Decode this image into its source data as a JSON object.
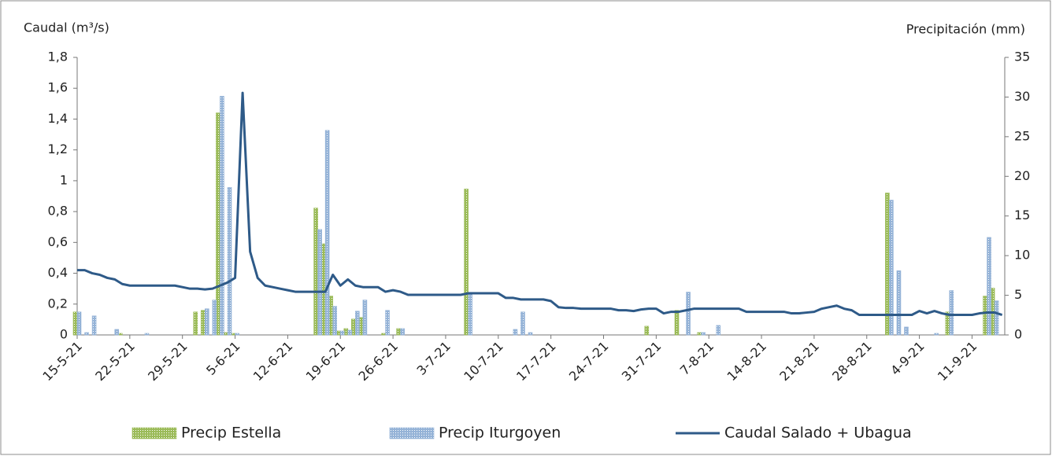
{
  "chart_data": {
    "type": "bar",
    "y_label": "Caudal (m³/s)",
    "y2_label": "Precipitación (mm)",
    "categories": [
      "15-5-21",
      null,
      null,
      null,
      null,
      null,
      null,
      "22-5-21",
      null,
      null,
      null,
      null,
      null,
      null,
      "29-5-21",
      null,
      null,
      null,
      null,
      null,
      null,
      "5-6-21",
      null,
      null,
      null,
      null,
      null,
      null,
      "12-6-21",
      null,
      null,
      null,
      null,
      null,
      null,
      "19-6-21",
      null,
      null,
      null,
      null,
      null,
      null,
      "26-6-21",
      null,
      null,
      null,
      null,
      null,
      null,
      "3-7-21",
      null,
      null,
      null,
      null,
      null,
      null,
      "10-7-21",
      null,
      null,
      null,
      null,
      null,
      null,
      "17-7-21",
      null,
      null,
      null,
      null,
      null,
      null,
      "24-7-21",
      null,
      null,
      null,
      null,
      null,
      null,
      "31-7-21",
      null,
      null,
      null,
      null,
      null,
      null,
      "7-8-21",
      null,
      null,
      null,
      null,
      null,
      null,
      "14-8-21",
      null,
      null,
      null,
      null,
      null,
      null,
      "21-8-21",
      null,
      null,
      null,
      null,
      null,
      null,
      "28-8-21",
      null,
      null,
      null,
      null,
      null,
      null,
      "4-9-21",
      null,
      null,
      null,
      null,
      null,
      null,
      "11-9-21",
      null,
      null,
      null,
      null
    ],
    "series": [
      {
        "name": "Precip Estella",
        "color": "#9bbb59",
        "axis": "y2",
        "values": [
          2.9,
          0,
          0,
          0,
          0,
          0,
          0.2,
          0,
          0,
          0,
          0,
          0,
          0,
          0,
          0,
          0,
          2.9,
          3.1,
          0,
          28,
          0.3,
          0.2,
          0,
          0,
          0,
          0,
          0,
          0,
          0,
          0,
          0,
          0,
          16,
          11.5,
          4.9,
          0.5,
          0.8,
          2,
          2.2,
          0,
          0,
          0.2,
          0,
          0.8,
          0,
          0,
          0,
          0,
          0,
          0,
          0,
          0,
          18.4,
          0,
          0,
          0,
          0,
          0,
          0,
          0,
          0,
          0,
          0,
          0,
          0,
          0,
          0,
          0,
          0,
          0,
          0,
          0,
          0,
          0,
          0,
          0,
          1.1,
          0,
          0,
          0,
          3.1,
          0,
          0,
          0.3,
          0,
          0,
          0,
          0,
          0,
          0,
          0,
          0,
          0,
          0,
          0,
          0,
          0,
          0,
          0,
          0,
          0,
          0,
          0,
          0,
          0,
          0,
          0,
          0,
          17.9,
          0,
          0,
          0,
          0,
          0,
          0,
          0,
          2.9,
          0,
          0,
          0,
          0,
          4.9,
          5.9,
          0
        ]
      },
      {
        "name": "Precip Iturgoyen",
        "color": "#95b3d7",
        "axis": "y2",
        "values": [
          2.9,
          0.3,
          2.4,
          0,
          0,
          0.7,
          0,
          0,
          0,
          0.2,
          0,
          0,
          0,
          0,
          0,
          0,
          0,
          3.3,
          4.4,
          30.1,
          18.6,
          0.2,
          0,
          0,
          0,
          0,
          0,
          0,
          0,
          0,
          0,
          0,
          13.3,
          25.8,
          3.6,
          0.5,
          0.6,
          3,
          4.4,
          0,
          0,
          3.1,
          0,
          0.8,
          0,
          0,
          0,
          0,
          0,
          0,
          0,
          0,
          5.3,
          0,
          0,
          0,
          0,
          0,
          0.7,
          2.9,
          0.3,
          0,
          0,
          0,
          0,
          0,
          0,
          0,
          0,
          0,
          0,
          0,
          0,
          0,
          0,
          0,
          0,
          0,
          0,
          0,
          0,
          5.4,
          0,
          0.3,
          0,
          1.2,
          0,
          0,
          0,
          0,
          0,
          0,
          0,
          0,
          0,
          0,
          0,
          0,
          0,
          0,
          0,
          0,
          0,
          0,
          0,
          0,
          0,
          0,
          17,
          8.1,
          1,
          0,
          0,
          0,
          0.2,
          0,
          5.6,
          0,
          0,
          0,
          0,
          12.3,
          4.3,
          0
        ]
      },
      {
        "name": "Caudal Salado + Ubagua",
        "color": "#2e5a88",
        "type": "line",
        "values": [
          0.42,
          0.42,
          0.4,
          0.39,
          0.37,
          0.36,
          0.33,
          0.32,
          0.32,
          0.32,
          0.32,
          0.32,
          0.32,
          0.32,
          0.31,
          0.3,
          0.3,
          0.295,
          0.3,
          0.32,
          0.34,
          0.37,
          1.57,
          0.54,
          0.37,
          0.32,
          0.31,
          0.3,
          0.29,
          0.28,
          0.28,
          0.28,
          0.28,
          0.28,
          0.39,
          0.32,
          0.36,
          0.32,
          0.31,
          0.31,
          0.31,
          0.28,
          0.29,
          0.28,
          0.26,
          0.26,
          0.26,
          0.26,
          0.26,
          0.26,
          0.26,
          0.26,
          0.27,
          0.27,
          0.27,
          0.27,
          0.27,
          0.24,
          0.24,
          0.23,
          0.23,
          0.23,
          0.23,
          0.22,
          0.18,
          0.175,
          0.175,
          0.17,
          0.17,
          0.17,
          0.17,
          0.17,
          0.16,
          0.16,
          0.155,
          0.165,
          0.17,
          0.17,
          0.14,
          0.15,
          0.15,
          0.16,
          0.17,
          0.17,
          0.17,
          0.17,
          0.17,
          0.17,
          0.17,
          0.15,
          0.15,
          0.15,
          0.15,
          0.15,
          0.15,
          0.14,
          0.14,
          0.145,
          0.15,
          0.17,
          0.18,
          0.19,
          0.17,
          0.16,
          0.13,
          0.13,
          0.13,
          0.13,
          0.13,
          0.13,
          0.13,
          0.13,
          0.155,
          0.14,
          0.155,
          0.14,
          0.13,
          0.13,
          0.13,
          0.13,
          0.14,
          0.145,
          0.145,
          0.13
        ]
      }
    ],
    "ylim": [
      0,
      1.8
    ],
    "yticks": [
      0,
      {
        "value": 0.2,
        "label": "0,2"
      },
      {
        "value": 0.4,
        "label": "0,4"
      },
      {
        "value": 0.6,
        "label": "0,6"
      },
      {
        "value": 0.8,
        "label": "0,8"
      },
      1,
      {
        "value": 1.2,
        "label": "1,2"
      },
      {
        "value": 1.4,
        "label": "1,4"
      },
      {
        "value": 1.6,
        "label": "1,6"
      },
      {
        "value": 1.8,
        "label": "1,8"
      }
    ],
    "y2lim": [
      0,
      35
    ],
    "y2ticks": [
      0,
      5,
      10,
      15,
      20,
      25,
      30,
      35
    ],
    "grid": false,
    "legend": "bottom"
  }
}
